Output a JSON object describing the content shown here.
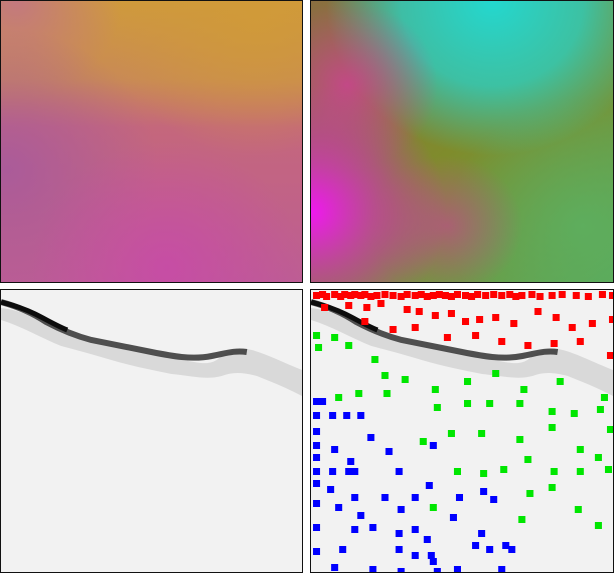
{
  "figure": {
    "panels": [
      {
        "name": "colorized-embedding-a",
        "kind": "color-field",
        "palette": [
          "#cf9a3c",
          "#c8607e",
          "#b56096",
          "#c64ea6"
        ]
      },
      {
        "name": "colorized-embedding-b",
        "kind": "color-field",
        "palette": [
          "#23d8cf",
          "#7f8c2c",
          "#e61ee6",
          "#5aa856"
        ]
      },
      {
        "name": "grayscale-map",
        "kind": "grayscale",
        "palette": [
          "#f2f2f2",
          "#1a1a1a"
        ]
      },
      {
        "name": "grayscale-map-with-markers",
        "kind": "grayscale-overlay",
        "palette": [
          "#ff0000",
          "#00e600",
          "#0000ff"
        ]
      }
    ]
  },
  "colors": {
    "frame": "#111111",
    "marker_red": "#ff0000",
    "marker_green": "#00e600",
    "marker_blue": "#0000ff"
  }
}
